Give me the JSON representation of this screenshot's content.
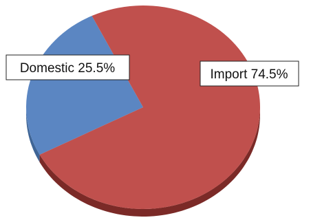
{
  "chart_data": {
    "type": "pie",
    "title": "",
    "slices": [
      {
        "label": "Domestic",
        "value": 25.5,
        "display": "Domestic 25.5%",
        "color": "#5b86c2",
        "side_color": "#3f6596"
      },
      {
        "label": "Import",
        "value": 74.5,
        "display": "Import 74.5%",
        "color": "#c0504d",
        "side_color": "#7b2a27"
      }
    ],
    "style": "3d",
    "legend": "none"
  }
}
